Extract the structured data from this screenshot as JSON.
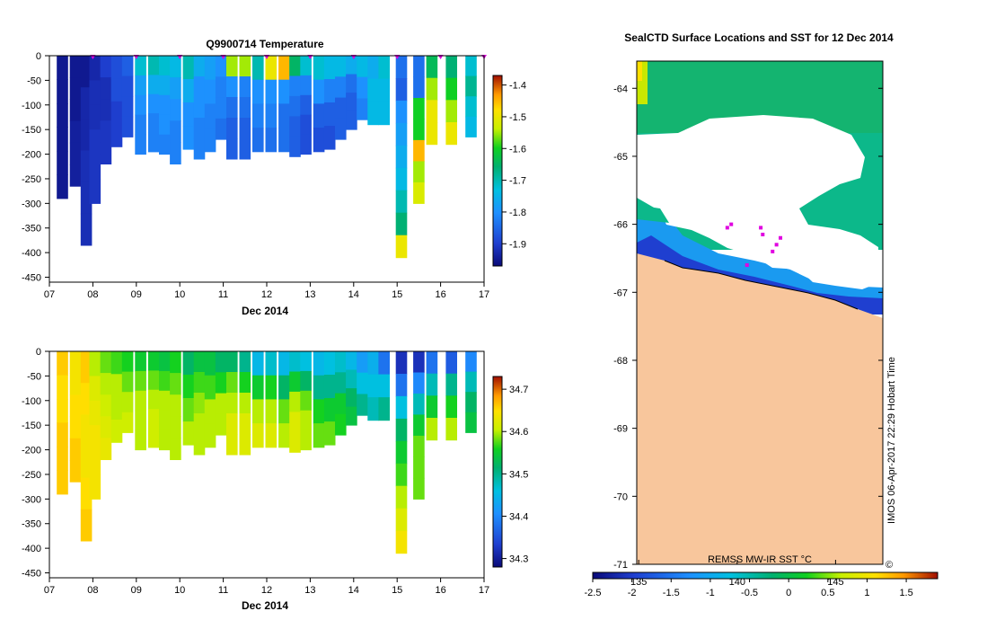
{
  "chart_data": [
    {
      "type": "heatmap",
      "title": "Q9900714  Temperature",
      "xlabel": "Dec 2014",
      "ylabel": "",
      "x_ticks": [
        "07",
        "08",
        "09",
        "10",
        "11",
        "12",
        "13",
        "14",
        "15",
        "16",
        "17"
      ],
      "x_range": [
        7,
        17
      ],
      "y_ticks": [
        "0",
        "-50",
        "-100",
        "-150",
        "-200",
        "-250",
        "-300",
        "-350",
        "-400",
        "-450"
      ],
      "y_range": [
        -460,
        0
      ],
      "colorbar": {
        "ticks": [
          "-1.4",
          "-1.5",
          "-1.6",
          "-1.7",
          "-1.8",
          "-1.9"
        ],
        "tick_values": [
          -1.4,
          -1.5,
          -1.6,
          -1.7,
          -1.8,
          -1.9
        ],
        "range": [
          -1.97,
          -1.37
        ]
      },
      "profile_markers_day": [
        8,
        9,
        10,
        11,
        12,
        13,
        14,
        15,
        16,
        17
      ],
      "profiles": [
        {
          "day": 7.3,
          "depth": 290,
          "values": [
            -1.95,
            -1.95,
            -1.95,
            -1.95,
            -1.95,
            -1.95
          ]
        },
        {
          "day": 7.6,
          "depth": 265,
          "values": [
            -1.95,
            -1.95,
            -1.95,
            -1.94,
            -1.94,
            -1.94
          ]
        },
        {
          "day": 7.85,
          "depth": 385,
          "values": [
            -1.95,
            -1.93,
            -1.93,
            -1.92,
            -1.92,
            -1.92
          ]
        },
        {
          "day": 8.05,
          "depth": 300,
          "values": [
            -1.93,
            -1.92,
            -1.92,
            -1.91,
            -1.91,
            -1.91
          ]
        },
        {
          "day": 8.3,
          "depth": 220,
          "values": [
            -1.9,
            -1.92,
            -1.92,
            -1.91,
            -1.91
          ]
        },
        {
          "day": 8.55,
          "depth": 185,
          "values": [
            -1.88,
            -1.88,
            -1.9,
            -1.9
          ]
        },
        {
          "day": 8.8,
          "depth": 165,
          "values": [
            -1.86,
            -1.88,
            -1.88,
            -1.88
          ]
        },
        {
          "day": 9.1,
          "depth": 200,
          "values": [
            -1.72,
            -1.78,
            -1.8,
            -1.82,
            -1.82
          ]
        },
        {
          "day": 9.4,
          "depth": 195,
          "values": [
            -1.7,
            -1.76,
            -1.8,
            -1.82,
            -1.82
          ]
        },
        {
          "day": 9.65,
          "depth": 200,
          "values": [
            -1.72,
            -1.76,
            -1.8,
            -1.8,
            -1.82
          ]
        },
        {
          "day": 9.9,
          "depth": 220,
          "values": [
            -1.74,
            -1.78,
            -1.8,
            -1.82,
            -1.82
          ]
        },
        {
          "day": 10.2,
          "depth": 190,
          "values": [
            -1.7,
            -1.76,
            -1.8,
            -1.8
          ]
        },
        {
          "day": 10.45,
          "depth": 210,
          "values": [
            -1.76,
            -1.8,
            -1.8,
            -1.82,
            -1.82
          ]
        },
        {
          "day": 10.7,
          "depth": 195,
          "values": [
            -1.78,
            -1.8,
            -1.82,
            -1.82
          ]
        },
        {
          "day": 10.95,
          "depth": 170,
          "values": [
            -1.8,
            -1.82,
            -1.82,
            -1.84
          ]
        },
        {
          "day": 11.2,
          "depth": 210,
          "values": [
            -1.55,
            -1.8,
            -1.84,
            -1.86,
            -1.86
          ]
        },
        {
          "day": 11.5,
          "depth": 210,
          "values": [
            -1.55,
            -1.82,
            -1.84,
            -1.86,
            -1.86
          ]
        },
        {
          "day": 11.8,
          "depth": 195,
          "values": [
            -1.7,
            -1.8,
            -1.82,
            -1.84
          ]
        },
        {
          "day": 12.1,
          "depth": 195,
          "values": [
            -1.5,
            -1.8,
            -1.82,
            -1.84
          ]
        },
        {
          "day": 12.4,
          "depth": 195,
          "values": [
            -1.45,
            -1.8,
            -1.84,
            -1.84
          ]
        },
        {
          "day": 12.65,
          "depth": 205,
          "values": [
            -1.65,
            -1.82,
            -1.84,
            -1.86,
            -1.86
          ]
        },
        {
          "day": 12.9,
          "depth": 200,
          "values": [
            -1.72,
            -1.82,
            -1.86,
            -1.88,
            -1.88
          ]
        },
        {
          "day": 13.2,
          "depth": 195,
          "values": [
            -1.72,
            -1.8,
            -1.86,
            -1.88
          ]
        },
        {
          "day": 13.45,
          "depth": 190,
          "values": [
            -1.74,
            -1.82,
            -1.86,
            -1.88
          ]
        },
        {
          "day": 13.7,
          "depth": 170,
          "values": [
            -1.74,
            -1.82,
            -1.86,
            -1.86
          ]
        },
        {
          "day": 13.95,
          "depth": 150,
          "values": [
            -1.76,
            -1.84,
            -1.86,
            -1.86
          ]
        },
        {
          "day": 14.2,
          "depth": 130,
          "values": [
            -1.74,
            -1.8,
            -1.82
          ]
        },
        {
          "day": 14.45,
          "depth": 140,
          "values": [
            -1.76,
            -1.74,
            -1.74
          ]
        },
        {
          "day": 14.7,
          "depth": 140,
          "values": [
            -1.72,
            -1.74,
            -1.74
          ]
        },
        {
          "day": 15.1,
          "depth": 410,
          "values": [
            -1.84,
            -1.86,
            -1.8,
            -1.78,
            -1.76,
            -1.74,
            -1.7,
            -1.66,
            -1.5
          ]
        },
        {
          "day": 15.5,
          "depth": 300,
          "values": [
            -1.84,
            -1.84,
            -1.6,
            -1.6,
            -1.45,
            -1.55,
            -1.52
          ]
        },
        {
          "day": 15.8,
          "depth": 180,
          "values": [
            -1.64,
            -1.55,
            -1.5,
            -1.5
          ]
        },
        {
          "day": 16.25,
          "depth": 180,
          "values": [
            -1.66,
            -1.6,
            -1.55,
            -1.5
          ]
        },
        {
          "day": 16.7,
          "depth": 165,
          "values": [
            -1.72,
            -1.68,
            -1.72,
            -1.74
          ]
        }
      ]
    },
    {
      "type": "heatmap",
      "title": "",
      "xlabel": "Dec 2014",
      "ylabel": "",
      "x_ticks": [
        "07",
        "08",
        "09",
        "10",
        "11",
        "12",
        "13",
        "14",
        "15",
        "16",
        "17"
      ],
      "x_range": [
        7,
        17
      ],
      "y_ticks": [
        "0",
        "-50",
        "-100",
        "-150",
        "-200",
        "-250",
        "-300",
        "-350",
        "-400",
        "-450"
      ],
      "y_range": [
        -460,
        0
      ],
      "colorbar": {
        "ticks": [
          "34.7",
          "34.6",
          "34.5",
          "34.4",
          "34.3"
        ],
        "tick_values": [
          34.7,
          34.6,
          34.5,
          34.4,
          34.3
        ],
        "range": [
          34.28,
          34.73
        ]
      },
      "profiles": [
        {
          "day": 7.3,
          "depth": 290,
          "values": [
            34.66,
            34.65,
            34.65,
            34.66,
            34.66,
            34.66
          ]
        },
        {
          "day": 7.6,
          "depth": 265,
          "values": [
            34.64,
            34.64,
            34.65,
            34.65,
            34.66,
            34.66
          ]
        },
        {
          "day": 7.85,
          "depth": 385,
          "values": [
            34.66,
            34.65,
            34.64,
            34.64,
            34.65,
            34.66
          ]
        },
        {
          "day": 8.05,
          "depth": 300,
          "values": [
            34.6,
            34.62,
            34.63,
            34.64,
            34.64,
            34.64
          ]
        },
        {
          "day": 8.3,
          "depth": 220,
          "values": [
            34.58,
            34.6,
            34.61,
            34.62,
            34.63
          ]
        },
        {
          "day": 8.55,
          "depth": 185,
          "values": [
            34.57,
            34.6,
            34.6,
            34.61
          ]
        },
        {
          "day": 8.8,
          "depth": 165,
          "values": [
            34.56,
            34.58,
            34.6,
            34.61
          ]
        },
        {
          "day": 9.1,
          "depth": 200,
          "values": [
            34.55,
            34.58,
            34.6,
            34.6,
            34.6
          ]
        },
        {
          "day": 9.4,
          "depth": 195,
          "values": [
            34.55,
            34.58,
            34.6,
            34.61,
            34.61
          ]
        },
        {
          "day": 9.65,
          "depth": 200,
          "values": [
            34.54,
            34.57,
            34.6,
            34.6,
            34.6
          ]
        },
        {
          "day": 9.9,
          "depth": 220,
          "values": [
            34.56,
            34.58,
            34.6,
            34.6,
            34.6
          ]
        },
        {
          "day": 10.2,
          "depth": 190,
          "values": [
            34.52,
            34.56,
            34.58,
            34.6
          ]
        },
        {
          "day": 10.45,
          "depth": 210,
          "values": [
            34.54,
            34.57,
            34.59,
            34.6,
            34.6
          ]
        },
        {
          "day": 10.7,
          "depth": 195,
          "values": [
            34.54,
            34.57,
            34.6,
            34.6
          ]
        },
        {
          "day": 10.95,
          "depth": 170,
          "values": [
            34.52,
            34.56,
            34.6,
            34.6
          ]
        },
        {
          "day": 11.2,
          "depth": 210,
          "values": [
            34.52,
            34.58,
            34.6,
            34.62,
            34.62
          ]
        },
        {
          "day": 11.5,
          "depth": 210,
          "values": [
            34.5,
            34.56,
            34.6,
            34.62,
            34.62
          ]
        },
        {
          "day": 11.8,
          "depth": 195,
          "values": [
            34.45,
            34.55,
            34.6,
            34.62
          ]
        },
        {
          "day": 12.1,
          "depth": 195,
          "values": [
            34.47,
            34.56,
            34.6,
            34.62
          ]
        },
        {
          "day": 12.4,
          "depth": 195,
          "values": [
            34.45,
            34.52,
            34.58,
            34.6
          ]
        },
        {
          "day": 12.65,
          "depth": 205,
          "values": [
            34.47,
            34.55,
            34.6,
            34.62,
            34.62
          ]
        },
        {
          "day": 12.9,
          "depth": 200,
          "values": [
            34.46,
            34.52,
            34.58,
            34.6,
            34.6
          ]
        },
        {
          "day": 13.2,
          "depth": 195,
          "values": [
            34.45,
            34.5,
            34.56,
            34.58
          ]
        },
        {
          "day": 13.45,
          "depth": 190,
          "values": [
            34.46,
            34.5,
            34.55,
            34.58
          ]
        },
        {
          "day": 13.7,
          "depth": 170,
          "values": [
            34.47,
            34.5,
            34.55,
            34.56
          ]
        },
        {
          "day": 13.95,
          "depth": 150,
          "values": [
            34.45,
            34.48,
            34.52,
            34.54
          ]
        },
        {
          "day": 14.2,
          "depth": 130,
          "values": [
            34.42,
            34.46,
            34.5
          ]
        },
        {
          "day": 14.45,
          "depth": 140,
          "values": [
            34.44,
            34.46,
            34.48
          ]
        },
        {
          "day": 14.7,
          "depth": 140,
          "values": [
            34.38,
            34.46,
            34.5
          ]
        },
        {
          "day": 15.1,
          "depth": 410,
          "values": [
            34.32,
            34.38,
            34.46,
            34.52,
            34.55,
            34.57,
            34.6,
            34.62,
            34.64
          ]
        },
        {
          "day": 15.5,
          "depth": 300,
          "values": [
            34.32,
            34.4,
            34.48,
            34.55,
            34.58,
            34.58,
            34.58
          ]
        },
        {
          "day": 15.8,
          "depth": 180,
          "values": [
            34.38,
            34.48,
            34.55,
            34.6
          ]
        },
        {
          "day": 16.25,
          "depth": 180,
          "values": [
            34.36,
            34.5,
            34.56,
            34.6
          ]
        },
        {
          "day": 16.7,
          "depth": 165,
          "values": [
            34.4,
            34.48,
            34.52,
            34.54
          ]
        }
      ]
    },
    {
      "type": "heatmap",
      "title": "SealCTD Surface Locations and SST for 12 Dec 2014",
      "xlabel": "",
      "ylabel": "",
      "y_ticks": [
        "-64",
        "-65",
        "-66",
        "-67",
        "-68",
        "-69",
        "-70",
        "-71"
      ],
      "y_range": [
        -71,
        -63.6
      ],
      "x_ticks_bottom": [
        "135",
        "140",
        "145"
      ],
      "x_tick_values": [
        135,
        140,
        145
      ],
      "x_range": [
        134.9,
        147.4
      ],
      "sst_label": "REMSS MW-IR SST °C",
      "colorbar_ticks": [
        "-2.5",
        "-2",
        "-1.5",
        "-1",
        "-0.5",
        "0",
        "0.5",
        "1",
        "1.5"
      ],
      "colorbar_values": [
        -2.5,
        -2,
        -1.5,
        -1,
        -0.5,
        0,
        0.5,
        1,
        1.5
      ],
      "colorbar_range": [
        -2.5,
        1.9
      ],
      "credit": "IMOS 06-Apr-2017 22:29 Hobart Time",
      "seal_locations_lonlat": [
        [
          139.7,
          -66.0
        ],
        [
          139.5,
          -66.05
        ],
        [
          142.2,
          -66.2
        ],
        [
          141.3,
          -66.15
        ],
        [
          140.5,
          -66.6
        ],
        [
          141.8,
          -66.4
        ],
        [
          142.0,
          -66.3
        ],
        [
          141.2,
          -66.05
        ]
      ]
    }
  ]
}
